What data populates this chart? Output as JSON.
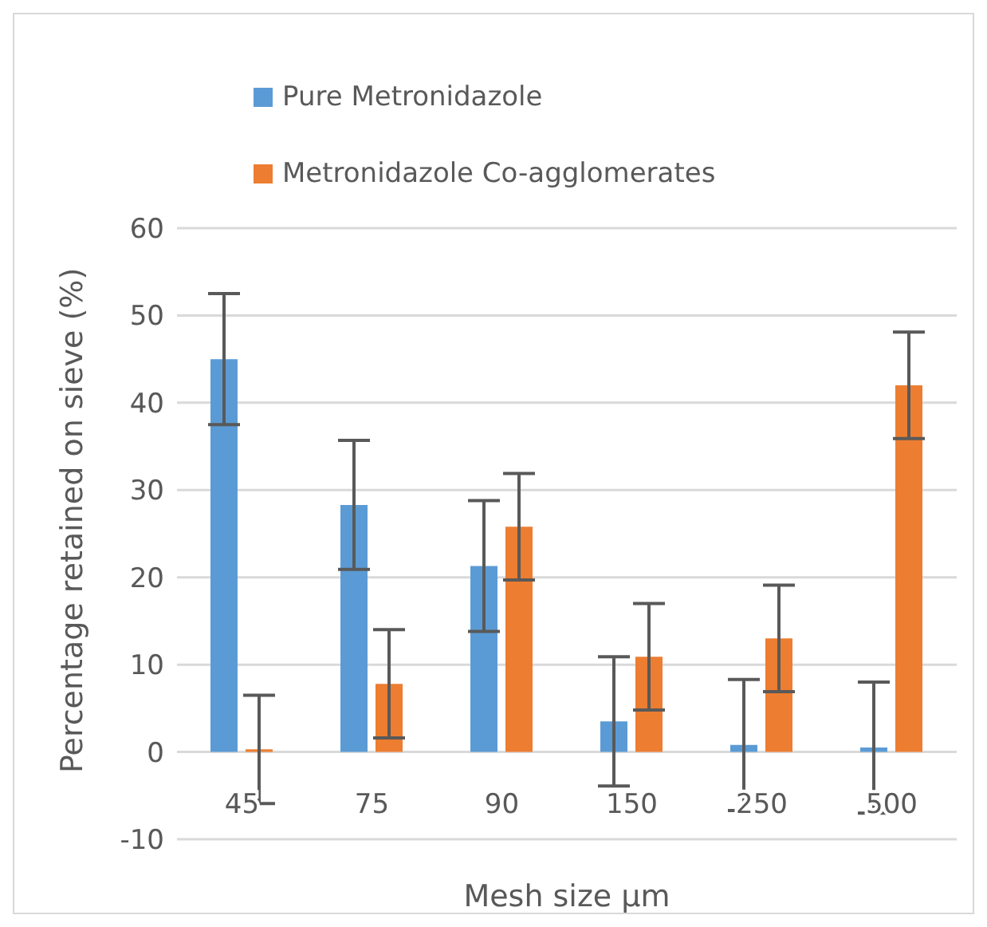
{
  "chart_data": {
    "type": "bar",
    "xlabel": "Mesh size µm",
    "ylabel": "Percentage retained on sieve (%)",
    "categories": [
      "45",
      "75",
      "90",
      "150",
      "250",
      "500"
    ],
    "series": [
      {
        "name": "Pure Metronidazole",
        "color": "#5b9bd5",
        "values": [
          45,
          28.3,
          21.3,
          3.5,
          0.8,
          0.5
        ],
        "errors": [
          7.5,
          7.4,
          7.5,
          7.4,
          7.5,
          7.5
        ]
      },
      {
        "name": "Metronidazole Co-agglomerates",
        "color": "#ed7d31",
        "values": [
          0.3,
          7.8,
          25.8,
          10.9,
          13,
          42
        ],
        "errors": [
          6.2,
          6.2,
          6.1,
          6.1,
          6.1,
          6.1
        ]
      }
    ],
    "ylim": [
      -10,
      60
    ],
    "yticks": [
      -10,
      0,
      10,
      20,
      30,
      40,
      50,
      60
    ],
    "grid": "y",
    "legend": "top left"
  }
}
